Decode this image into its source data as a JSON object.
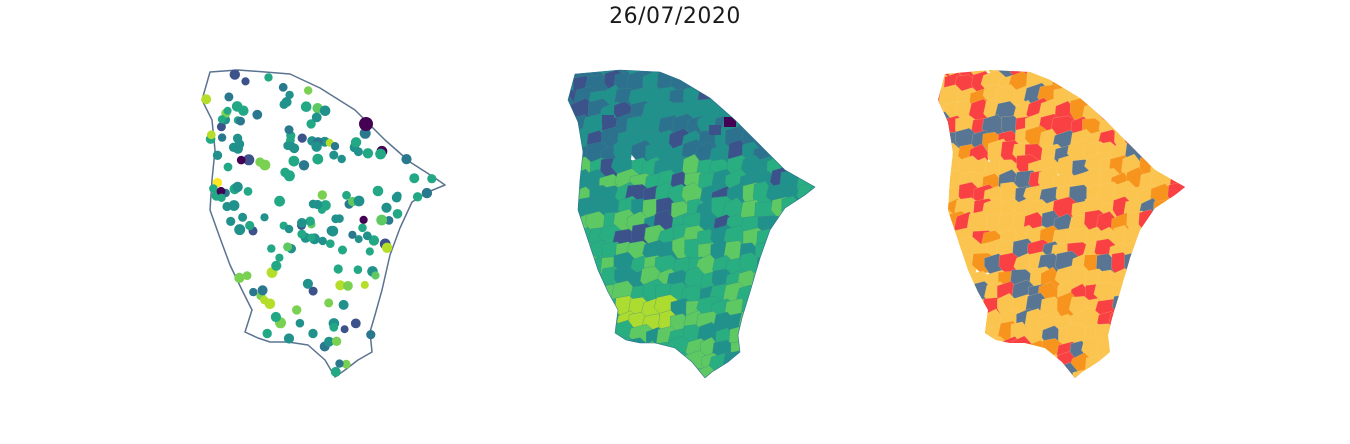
{
  "figure": {
    "title": "26/07/2020"
  },
  "maps": [
    {
      "id": "points",
      "type": "station-points",
      "outline_color": "#5b7390",
      "palette": [
        "#440154",
        "#3b528b",
        "#21918c",
        "#2a788e",
        "#22a884",
        "#5ec962",
        "#7ad151",
        "#b5de2b",
        "#fde725"
      ]
    },
    {
      "id": "interpolated",
      "type": "continuous-choropleth",
      "palette": [
        "#440154",
        "#3b528b",
        "#2c728e",
        "#21918c",
        "#28ae80",
        "#5ec962",
        "#addc30",
        "#fde725"
      ]
    },
    {
      "id": "classified",
      "type": "categorical-choropleth",
      "palette": {
        "cat1": "#587593",
        "cat2": "#f7941d",
        "cat3": "#fac44e",
        "cat4": "#f94144"
      }
    }
  ]
}
